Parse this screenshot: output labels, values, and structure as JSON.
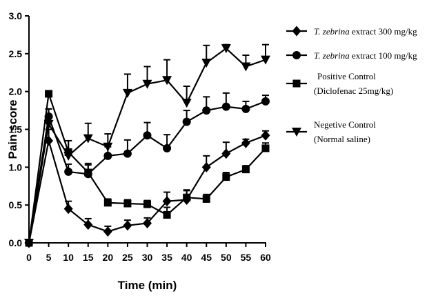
{
  "chart_data": {
    "type": "line",
    "xlabel": "Time (min)",
    "ylabel": "Pain score",
    "x": [
      0,
      5,
      10,
      15,
      20,
      25,
      30,
      35,
      40,
      45,
      50,
      55,
      60
    ],
    "xlim": [
      0,
      60
    ],
    "ylim": [
      0.0,
      3.0
    ],
    "yticks": [
      "0.0",
      "0.5",
      "1.0",
      "1.5",
      "2.0",
      "2.5",
      "3.0"
    ],
    "xticks": [
      "0",
      "5",
      "10",
      "15",
      "20",
      "25",
      "30",
      "35",
      "40",
      "45",
      "50",
      "55",
      "60"
    ],
    "grid": false,
    "legend_position": "right",
    "series": [
      {
        "name_italic": "T. zebrina",
        "name_rest": " extract 300 mg/kg",
        "marker": "diamond",
        "values": [
          0.0,
          1.35,
          0.45,
          0.24,
          0.15,
          0.23,
          0.26,
          0.55,
          0.57,
          1.0,
          1.18,
          1.32,
          1.42
        ],
        "errors": [
          0.0,
          0.15,
          0.1,
          0.08,
          0.07,
          0.07,
          0.07,
          0.12,
          0.12,
          0.15,
          0.15,
          0.05,
          0.06
        ]
      },
      {
        "name_italic": "T. zebrina",
        "name_rest": " extract 100 mg/kg",
        "marker": "circle",
        "values": [
          0.0,
          1.67,
          0.94,
          0.91,
          1.15,
          1.18,
          1.42,
          1.25,
          1.6,
          1.75,
          1.8,
          1.77,
          1.87
        ],
        "errors": [
          0.0,
          0.1,
          0.1,
          0.12,
          0.12,
          0.18,
          0.17,
          0.18,
          0.15,
          0.18,
          0.18,
          0.1,
          0.08
        ]
      },
      {
        "name_line1": "Positive Control",
        "name_line2": "(Diclofenac 25mg/kg)",
        "marker": "square",
        "values": [
          0.0,
          1.97,
          1.2,
          0.93,
          0.53,
          0.52,
          0.51,
          0.37,
          0.6,
          0.58,
          0.87,
          0.97,
          1.25
        ],
        "errors": [
          0.0,
          0.0,
          0.15,
          0.12,
          0.05,
          0.05,
          0.05,
          0.1,
          0.1,
          0.06,
          0.06,
          0.05,
          0.07
        ]
      },
      {
        "name_line1": "Negetive Control",
        "name_line2": "(Normal saline)",
        "marker": "triangle-down",
        "values": [
          0.0,
          1.57,
          1.15,
          1.38,
          1.27,
          1.98,
          2.1,
          2.15,
          1.85,
          2.38,
          2.57,
          2.33,
          2.42
        ],
        "errors": [
          0.0,
          0.2,
          0.2,
          0.2,
          0.17,
          0.25,
          0.23,
          0.27,
          0.22,
          0.23,
          0.05,
          0.15,
          0.2
        ]
      }
    ]
  }
}
